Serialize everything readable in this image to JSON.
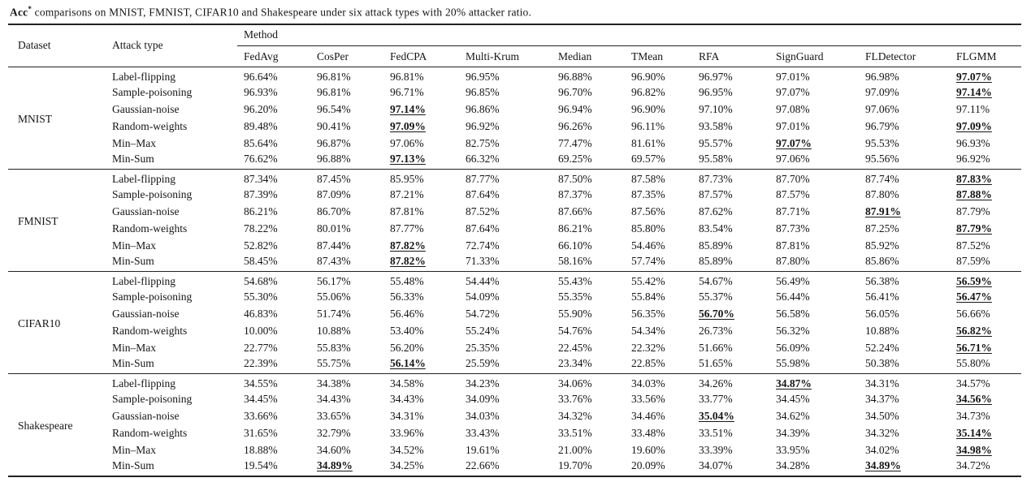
{
  "caption": {
    "acc": "Acc",
    "superscript": "*",
    "rest": " comparisons on MNIST, FMNIST, CIFAR10 and Shakespeare under six attack types with 20% attacker ratio."
  },
  "table": {
    "headers": {
      "dataset": "Dataset",
      "attack": "Attack type",
      "method_group": "Method",
      "methods": [
        "FedAvg",
        "CosPer",
        "FedCPA",
        "Multi-Krum",
        "Median",
        "TMean",
        "RFA",
        "SignGuard",
        "FLDetector",
        "FLGMM"
      ]
    },
    "groups": [
      {
        "dataset": "MNIST",
        "rows": [
          {
            "attack": "Label-flipping",
            "values": [
              "96.64%",
              "96.81%",
              "96.81%",
              "96.95%",
              "96.88%",
              "96.90%",
              "96.97%",
              "97.01%",
              "96.98%",
              "97.07%"
            ],
            "best": [
              9
            ]
          },
          {
            "attack": "Sample-poisoning",
            "values": [
              "96.93%",
              "96.81%",
              "96.71%",
              "96.85%",
              "96.70%",
              "96.82%",
              "96.95%",
              "97.07%",
              "97.09%",
              "97.14%"
            ],
            "best": [
              9
            ]
          },
          {
            "attack": "Gaussian-noise",
            "values": [
              "96.20%",
              "96.54%",
              "97.14%",
              "96.86%",
              "96.94%",
              "96.90%",
              "97.10%",
              "97.08%",
              "97.06%",
              "97.11%"
            ],
            "best": [
              2
            ]
          },
          {
            "attack": "Random-weights",
            "values": [
              "89.48%",
              "90.41%",
              "97.09%",
              "96.92%",
              "96.26%",
              "96.11%",
              "93.58%",
              "97.01%",
              "96.79%",
              "97.09%"
            ],
            "best": [
              2,
              9
            ]
          },
          {
            "attack": "Min–Max",
            "values": [
              "85.64%",
              "96.87%",
              "97.06%",
              "82.75%",
              "77.47%",
              "81.61%",
              "95.57%",
              "97.07%",
              "95.53%",
              "96.93%"
            ],
            "best": [
              7
            ]
          },
          {
            "attack": "Min-Sum",
            "values": [
              "76.62%",
              "96.88%",
              "97.13%",
              "66.32%",
              "69.25%",
              "69.57%",
              "95.58%",
              "97.06%",
              "95.56%",
              "96.92%"
            ],
            "best": [
              2
            ]
          }
        ]
      },
      {
        "dataset": "FMNIST",
        "rows": [
          {
            "attack": "Label-flipping",
            "values": [
              "87.34%",
              "87.45%",
              "85.95%",
              "87.77%",
              "87.50%",
              "87.58%",
              "87.73%",
              "87.70%",
              "87.74%",
              "87.83%"
            ],
            "best": [
              9
            ]
          },
          {
            "attack": "Sample-poisoning",
            "values": [
              "87.39%",
              "87.09%",
              "87.21%",
              "87.64%",
              "87.37%",
              "87.35%",
              "87.57%",
              "87.57%",
              "87.80%",
              "87.88%"
            ],
            "best": [
              9
            ]
          },
          {
            "attack": "Gaussian-noise",
            "values": [
              "86.21%",
              "86.70%",
              "87.81%",
              "87.52%",
              "87.66%",
              "87.56%",
              "87.62%",
              "87.71%",
              "87.91%",
              "87.79%"
            ],
            "best": [
              8
            ]
          },
          {
            "attack": "Random-weights",
            "values": [
              "78.22%",
              "80.01%",
              "87.77%",
              "87.64%",
              "86.21%",
              "85.80%",
              "83.54%",
              "87.73%",
              "87.25%",
              "87.79%"
            ],
            "best": [
              9
            ]
          },
          {
            "attack": "Min–Max",
            "values": [
              "52.82%",
              "87.44%",
              "87.82%",
              "72.74%",
              "66.10%",
              "54.46%",
              "85.89%",
              "87.81%",
              "85.92%",
              "87.52%"
            ],
            "best": [
              2
            ]
          },
          {
            "attack": "Min-Sum",
            "values": [
              "58.45%",
              "87.43%",
              "87.82%",
              "71.33%",
              "58.16%",
              "57.74%",
              "85.89%",
              "87.80%",
              "85.86%",
              "87.59%"
            ],
            "best": [
              2
            ]
          }
        ]
      },
      {
        "dataset": "CIFAR10",
        "rows": [
          {
            "attack": "Label-flipping",
            "values": [
              "54.68%",
              "56.17%",
              "55.48%",
              "54.44%",
              "55.43%",
              "55.42%",
              "54.67%",
              "56.49%",
              "56.38%",
              "56.59%"
            ],
            "best": [
              9
            ]
          },
          {
            "attack": "Sample-poisoning",
            "values": [
              "55.30%",
              "55.06%",
              "56.33%",
              "54.09%",
              "55.35%",
              "55.84%",
              "55.37%",
              "56.44%",
              "56.41%",
              "56.47%"
            ],
            "best": [
              9
            ]
          },
          {
            "attack": "Gaussian-noise",
            "values": [
              "46.83%",
              "51.74%",
              "56.46%",
              "54.72%",
              "55.90%",
              "56.35%",
              "56.70%",
              "56.58%",
              "56.05%",
              "56.66%"
            ],
            "best": [
              6
            ]
          },
          {
            "attack": "Random-weights",
            "values": [
              "10.00%",
              "10.88%",
              "53.40%",
              "55.24%",
              "54.76%",
              "54.34%",
              "26.73%",
              "56.32%",
              "10.88%",
              "56.82%"
            ],
            "best": [
              9
            ]
          },
          {
            "attack": "Min–Max",
            "values": [
              "22.77%",
              "55.83%",
              "56.20%",
              "25.35%",
              "22.45%",
              "22.32%",
              "51.66%",
              "56.09%",
              "52.24%",
              "56.71%"
            ],
            "best": [
              9
            ]
          },
          {
            "attack": "Min-Sum",
            "values": [
              "22.39%",
              "55.75%",
              "56.14%",
              "25.59%",
              "23.34%",
              "22.85%",
              "51.65%",
              "55.98%",
              "50.38%",
              "55.80%"
            ],
            "best": [
              2
            ]
          }
        ]
      },
      {
        "dataset": "Shakespeare",
        "rows": [
          {
            "attack": "Label-flipping",
            "values": [
              "34.55%",
              "34.38%",
              "34.58%",
              "34.23%",
              "34.06%",
              "34.03%",
              "34.26%",
              "34.87%",
              "34.31%",
              "34.57%"
            ],
            "best": [
              7
            ]
          },
          {
            "attack": "Sample-poisoning",
            "values": [
              "34.45%",
              "34.43%",
              "34.43%",
              "34.09%",
              "33.76%",
              "33.56%",
              "33.77%",
              "34.45%",
              "34.37%",
              "34.56%"
            ],
            "best": [
              9
            ]
          },
          {
            "attack": "Gaussian-noise",
            "values": [
              "33.66%",
              "33.65%",
              "34.31%",
              "34.03%",
              "34.32%",
              "34.46%",
              "35.04%",
              "34.62%",
              "34.50%",
              "34.73%"
            ],
            "best": [
              6
            ]
          },
          {
            "attack": "Random-weights",
            "values": [
              "31.65%",
              "32.79%",
              "33.96%",
              "33.43%",
              "33.51%",
              "33.48%",
              "33.51%",
              "34.39%",
              "34.32%",
              "35.14%"
            ],
            "best": [
              9
            ]
          },
          {
            "attack": "Min–Max",
            "values": [
              "18.88%",
              "34.60%",
              "34.52%",
              "19.61%",
              "21.00%",
              "19.60%",
              "33.39%",
              "33.95%",
              "34.02%",
              "34.98%"
            ],
            "best": [
              9
            ]
          },
          {
            "attack": "Min-Sum",
            "values": [
              "19.54%",
              "34.89%",
              "34.25%",
              "22.66%",
              "19.70%",
              "20.09%",
              "34.07%",
              "34.28%",
              "34.89%",
              "34.72%"
            ],
            "best": [
              1,
              8
            ]
          }
        ]
      }
    ]
  }
}
